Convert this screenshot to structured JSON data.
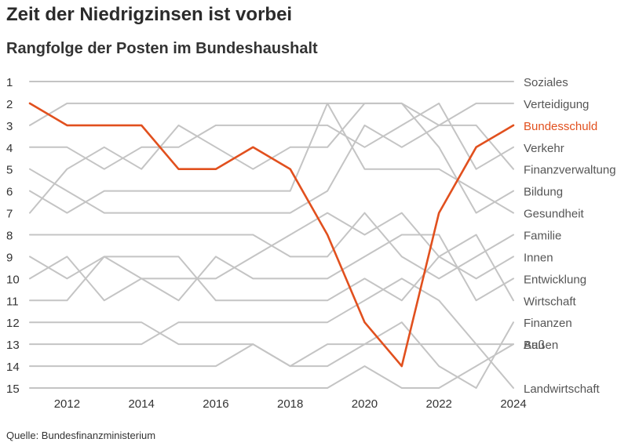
{
  "title": "Zeit der Niedrigzinsen ist vorbei",
  "subtitle": "Rangfolge der Posten im Bundeshaushalt",
  "source": "Quelle: Bundesfinanzministerium",
  "colors": {
    "highlight": "#e1501e",
    "lines": "#c4c4c4",
    "text": "#333333"
  },
  "chart_data": {
    "type": "line",
    "x": [
      2011,
      2012,
      2013,
      2014,
      2015,
      2016,
      2017,
      2018,
      2019,
      2020,
      2021,
      2022,
      2023,
      2024
    ],
    "x_ticks": [
      2012,
      2014,
      2016,
      2018,
      2020,
      2022,
      2024
    ],
    "y_ticks": [
      1,
      2,
      3,
      4,
      5,
      6,
      7,
      8,
      9,
      10,
      11,
      12,
      13,
      14,
      15
    ],
    "ylim": [
      1,
      15
    ],
    "y_reversed": true,
    "grid": false,
    "highlight_series": "Bundesschuld",
    "series": [
      {
        "name": "Soziales",
        "values": [
          1,
          1,
          1,
          1,
          1,
          1,
          1,
          1,
          1,
          1,
          1,
          1,
          1,
          1
        ]
      },
      {
        "name": "Verteidigung",
        "values": [
          3,
          2,
          2,
          2,
          2,
          2,
          2,
          2,
          2,
          2,
          2,
          3,
          2,
          2
        ]
      },
      {
        "name": "Bundesschuld",
        "values": [
          2,
          3,
          3,
          3,
          5,
          5,
          4,
          5,
          8,
          12,
          14,
          7,
          4,
          3
        ]
      },
      {
        "name": "Verkehr",
        "values": [
          4,
          4,
          5,
          4,
          4,
          3,
          3,
          3,
          3,
          4,
          3,
          2,
          5,
          4
        ]
      },
      {
        "name": "Finanzverwaltung",
        "values": [
          5,
          6,
          7,
          7,
          7,
          7,
          7,
          7,
          6,
          3,
          4,
          3,
          3,
          5
        ]
      },
      {
        "name": "Bildung",
        "values": [
          7,
          5,
          4,
          5,
          3,
          4,
          5,
          4,
          4,
          2,
          2,
          4,
          7,
          6
        ]
      },
      {
        "name": "Gesundheit",
        "values": [
          6,
          7,
          6,
          6,
          6,
          6,
          6,
          6,
          2,
          5,
          5,
          5,
          6,
          7
        ]
      },
      {
        "name": "Familie",
        "values": [
          8,
          8,
          8,
          8,
          8,
          8,
          8,
          9,
          9,
          7,
          9,
          10,
          9,
          8
        ]
      },
      {
        "name": "Innen",
        "values": [
          11,
          11,
          9,
          9,
          9,
          11,
          11,
          11,
          11,
          10,
          11,
          9,
          10,
          9
        ]
      },
      {
        "name": "Entwicklung",
        "values": [
          9,
          10,
          9,
          10,
          11,
          9,
          10,
          10,
          10,
          9,
          8,
          8,
          11,
          10
        ]
      },
      {
        "name": "Wirtschaft",
        "values": [
          10,
          9,
          11,
          10,
          10,
          10,
          9,
          8,
          7,
          8,
          7,
          9,
          8,
          11
        ]
      },
      {
        "name": "Finanzen",
        "values": [
          12,
          12,
          12,
          12,
          13,
          13,
          13,
          14,
          13,
          13,
          12,
          14,
          15,
          12
        ]
      },
      {
        "name": "Bau",
        "values": [
          13,
          13,
          13,
          13,
          12,
          12,
          12,
          12,
          12,
          11,
          10,
          11,
          13,
          13
        ]
      },
      {
        "name": "Landwirtschaft",
        "values": [
          14,
          14,
          14,
          14,
          14,
          14,
          13,
          14,
          14,
          13,
          13,
          13,
          13,
          15
        ]
      },
      {
        "name": "Außen",
        "values": [
          15,
          15,
          15,
          15,
          15,
          15,
          15,
          15,
          15,
          14,
          15,
          15,
          14,
          13
        ]
      }
    ]
  }
}
